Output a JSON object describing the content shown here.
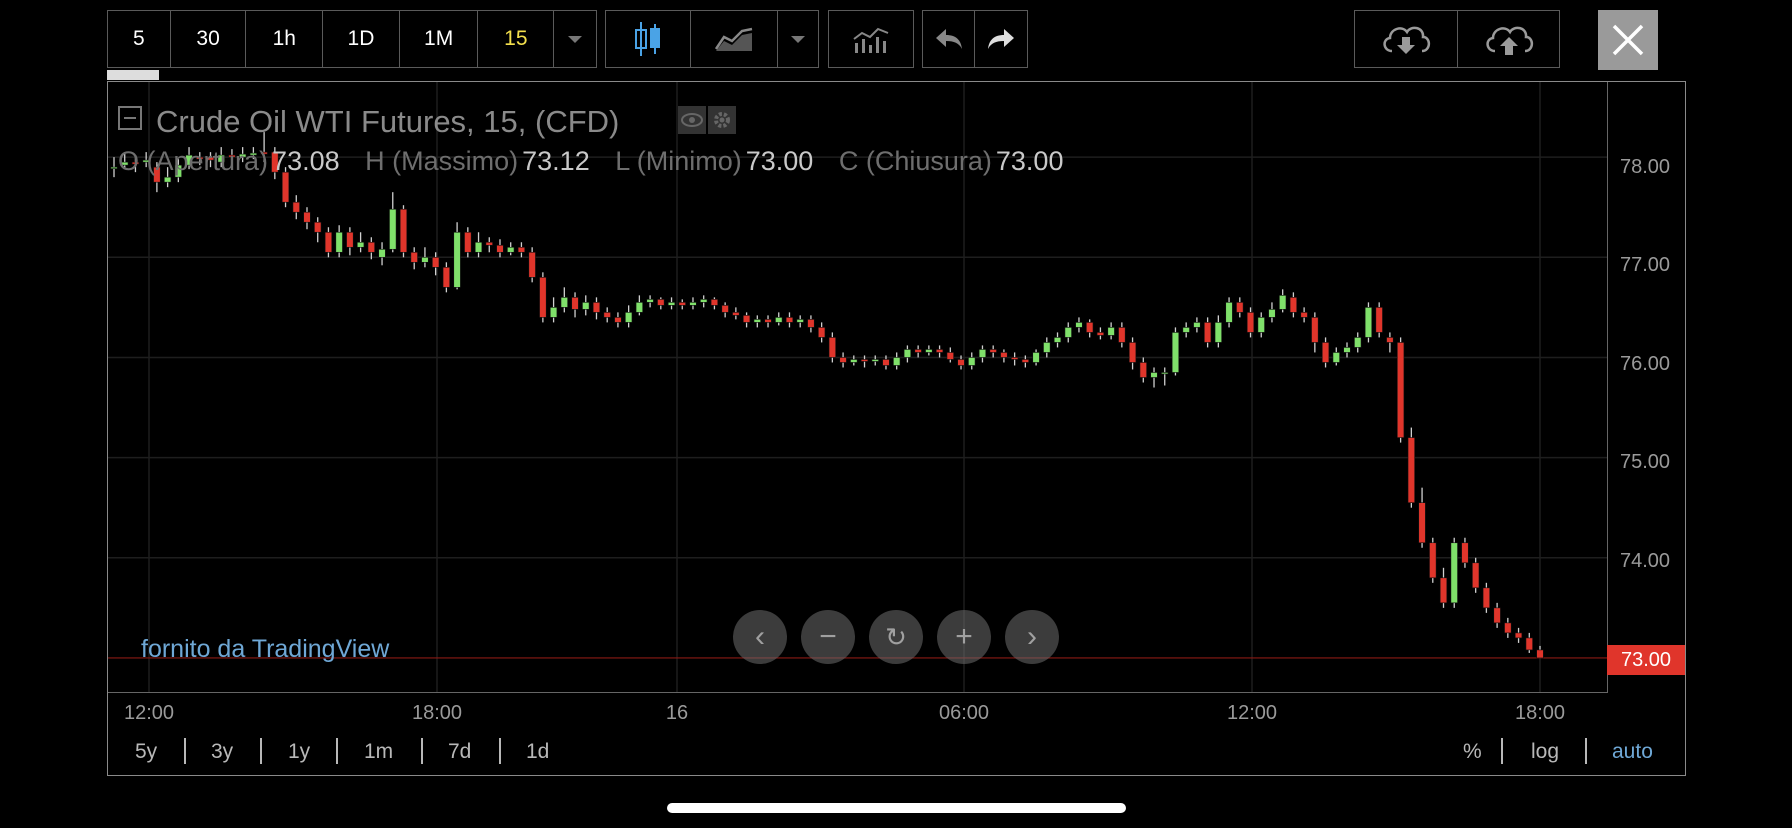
{
  "toolbar": {
    "intervals": [
      "5",
      "30",
      "1h",
      "1D",
      "1M",
      "15"
    ],
    "active_interval": "15",
    "chart_style_icon": "candlestick-icon",
    "line_style_icon": "line-chart-icon",
    "indicators_icon": "indicators-icon",
    "undo_icon": "undo-icon",
    "redo_icon": "redo-icon",
    "download_icon": "cloud-download-icon",
    "upload_icon": "cloud-upload-icon",
    "close_icon": "close-icon"
  },
  "legend": {
    "title": "Crude Oil WTI Futures, 15, (CFD)",
    "o_label": "O (Apertura)",
    "o_value": "73.08",
    "h_label": "H (Massimo)",
    "h_value": "73.12",
    "l_label": "L (Minimo)",
    "l_value": "73.00",
    "c_label": "C (Chiusura)",
    "c_value": "73.00"
  },
  "price_axis": [
    "78.00",
    "77.00",
    "76.00",
    "75.00",
    "74.00"
  ],
  "last_price": "73.00",
  "time_axis": [
    "12:00",
    "18:00",
    "16",
    "06:00",
    "12:00",
    "18:00"
  ],
  "attribution": "fornito da TradingView",
  "ranges": [
    "5y",
    "3y",
    "1y",
    "1m",
    "7d",
    "1d"
  ],
  "scale_options": {
    "percent": "%",
    "log": "log",
    "auto": "auto"
  },
  "colors": {
    "up": "#7fe06a",
    "down": "#e0352b",
    "last_price_bg": "#e0352b",
    "auto_active": "#6fa8d6",
    "attribution": "#6fa8d6"
  },
  "chart_data": {
    "type": "candlestick",
    "title": "Crude Oil WTI Futures, 15, (CFD)",
    "ylim": [
      72.65,
      78.75
    ],
    "candles": [
      [
        77.9,
        77.9,
        78.0,
        77.8
      ],
      [
        77.92,
        77.95,
        78.05,
        77.88
      ],
      [
        77.95,
        77.93,
        78.02,
        77.85
      ],
      [
        77.95,
        77.97,
        78.05,
        77.9
      ],
      [
        77.9,
        77.75,
        77.95,
        77.65
      ],
      [
        77.75,
        77.8,
        77.9,
        77.7
      ],
      [
        77.8,
        77.92,
        77.98,
        77.75
      ],
      [
        77.92,
        78.02,
        78.1,
        77.88
      ],
      [
        78.0,
        77.98,
        78.05,
        77.92
      ],
      [
        78.0,
        77.97,
        78.05,
        77.9
      ],
      [
        77.95,
        78.02,
        78.1,
        77.9
      ],
      [
        78.02,
        78.0,
        78.08,
        77.95
      ],
      [
        78.0,
        78.03,
        78.1,
        77.95
      ],
      [
        78.02,
        78.04,
        78.1,
        77.98
      ],
      [
        78.05,
        78.03,
        78.25,
        77.95
      ],
      [
        78.05,
        77.85,
        78.1,
        77.78
      ],
      [
        77.85,
        77.55,
        77.9,
        77.5
      ],
      [
        77.55,
        77.45,
        77.62,
        77.38
      ],
      [
        77.45,
        77.35,
        77.5,
        77.28
      ],
      [
        77.35,
        77.25,
        77.4,
        77.15
      ],
      [
        77.25,
        77.05,
        77.3,
        77.0
      ],
      [
        77.05,
        77.25,
        77.32,
        77.0
      ],
      [
        77.25,
        77.1,
        77.3,
        77.02
      ],
      [
        77.1,
        77.15,
        77.25,
        77.05
      ],
      [
        77.15,
        77.05,
        77.2,
        76.98
      ],
      [
        77.0,
        77.08,
        77.15,
        76.92
      ],
      [
        77.08,
        77.48,
        77.65,
        77.05
      ],
      [
        77.48,
        77.05,
        77.52,
        77.0
      ],
      [
        77.05,
        76.95,
        77.1,
        76.88
      ],
      [
        76.95,
        77.0,
        77.1,
        76.9
      ],
      [
        77.0,
        76.9,
        77.05,
        76.82
      ],
      [
        76.9,
        76.7,
        76.95,
        76.65
      ],
      [
        76.7,
        77.25,
        77.35,
        76.68
      ],
      [
        77.25,
        77.05,
        77.3,
        77.0
      ],
      [
        77.05,
        77.15,
        77.25,
        77.0
      ],
      [
        77.15,
        77.12,
        77.2,
        77.05
      ],
      [
        77.12,
        77.05,
        77.18,
        77.0
      ],
      [
        77.05,
        77.1,
        77.15,
        77.02
      ],
      [
        77.1,
        77.05,
        77.15,
        77.0
      ],
      [
        77.05,
        76.8,
        77.1,
        76.75
      ],
      [
        76.8,
        76.4,
        76.85,
        76.35
      ],
      [
        76.4,
        76.5,
        76.6,
        76.35
      ],
      [
        76.5,
        76.6,
        76.7,
        76.45
      ],
      [
        76.6,
        76.48,
        76.65,
        76.4
      ],
      [
        76.48,
        76.55,
        76.62,
        76.42
      ],
      [
        76.55,
        76.45,
        76.6,
        76.38
      ],
      [
        76.45,
        76.4,
        76.5,
        76.35
      ],
      [
        76.4,
        76.35,
        76.45,
        76.3
      ],
      [
        76.35,
        76.45,
        76.52,
        76.3
      ],
      [
        76.45,
        76.55,
        76.62,
        76.42
      ],
      [
        76.55,
        76.58,
        76.62,
        76.5
      ],
      [
        76.58,
        76.52,
        76.6,
        76.48
      ],
      [
        76.52,
        76.55,
        76.6,
        76.48
      ],
      [
        76.55,
        76.52,
        76.58,
        76.48
      ],
      [
        76.52,
        76.55,
        76.6,
        76.48
      ],
      [
        76.55,
        76.58,
        76.62,
        76.5
      ],
      [
        76.58,
        76.52,
        76.6,
        76.48
      ],
      [
        76.52,
        76.45,
        76.55,
        76.4
      ],
      [
        76.45,
        76.42,
        76.5,
        76.38
      ],
      [
        76.42,
        76.35,
        76.45,
        76.3
      ],
      [
        76.35,
        76.38,
        76.42,
        76.3
      ],
      [
        76.38,
        76.35,
        76.42,
        76.3
      ],
      [
        76.35,
        76.4,
        76.45,
        76.32
      ],
      [
        76.4,
        76.35,
        76.45,
        76.3
      ],
      [
        76.35,
        76.38,
        76.42,
        76.3
      ],
      [
        76.38,
        76.3,
        76.42,
        76.25
      ],
      [
        76.3,
        76.2,
        76.35,
        76.15
      ],
      [
        76.2,
        76.0,
        76.25,
        75.95
      ],
      [
        76.0,
        75.95,
        76.05,
        75.9
      ],
      [
        75.95,
        75.98,
        76.02,
        75.92
      ],
      [
        75.98,
        75.96,
        76.02,
        75.9
      ],
      [
        75.96,
        75.98,
        76.02,
        75.92
      ],
      [
        75.98,
        75.92,
        76.02,
        75.88
      ],
      [
        75.92,
        76.0,
        76.05,
        75.88
      ],
      [
        76.0,
        76.08,
        76.12,
        75.95
      ],
      [
        76.08,
        76.05,
        76.12,
        76.0
      ],
      [
        76.05,
        76.08,
        76.12,
        76.02
      ],
      [
        76.08,
        76.05,
        76.12,
        76.0
      ],
      [
        76.05,
        75.98,
        76.1,
        75.95
      ],
      [
        75.98,
        75.92,
        76.02,
        75.88
      ],
      [
        75.92,
        76.0,
        76.05,
        75.88
      ],
      [
        76.0,
        76.08,
        76.12,
        75.95
      ],
      [
        76.08,
        76.05,
        76.12,
        76.0
      ],
      [
        76.05,
        76.0,
        76.08,
        75.95
      ],
      [
        76.0,
        75.98,
        76.05,
        75.92
      ],
      [
        75.98,
        75.95,
        76.02,
        75.9
      ],
      [
        75.95,
        76.05,
        76.08,
        75.92
      ],
      [
        76.05,
        76.15,
        76.2,
        76.0
      ],
      [
        76.15,
        76.2,
        76.25,
        76.1
      ],
      [
        76.2,
        76.3,
        76.35,
        76.15
      ],
      [
        76.3,
        76.35,
        76.4,
        76.25
      ],
      [
        76.35,
        76.25,
        76.38,
        76.2
      ],
      [
        76.25,
        76.22,
        76.3,
        76.18
      ],
      [
        76.22,
        76.3,
        76.35,
        76.18
      ],
      [
        76.3,
        76.15,
        76.35,
        76.1
      ],
      [
        76.15,
        75.95,
        76.2,
        75.88
      ],
      [
        75.95,
        75.8,
        76.0,
        75.75
      ],
      [
        75.8,
        75.85,
        75.9,
        75.7
      ],
      [
        75.85,
        75.85,
        75.9,
        75.72
      ],
      [
        75.85,
        76.25,
        76.3,
        75.82
      ],
      [
        76.25,
        76.3,
        76.35,
        76.2
      ],
      [
        76.3,
        76.35,
        76.4,
        76.25
      ],
      [
        76.35,
        76.15,
        76.4,
        76.1
      ],
      [
        76.15,
        76.35,
        76.42,
        76.1
      ],
      [
        76.35,
        76.55,
        76.6,
        76.3
      ],
      [
        76.55,
        76.45,
        76.6,
        76.4
      ],
      [
        76.45,
        76.25,
        76.5,
        76.2
      ],
      [
        76.25,
        76.4,
        76.45,
        76.2
      ],
      [
        76.4,
        76.48,
        76.55,
        76.35
      ],
      [
        76.48,
        76.62,
        76.68,
        76.45
      ],
      [
        76.6,
        76.45,
        76.65,
        76.4
      ],
      [
        76.45,
        76.4,
        76.5,
        76.35
      ],
      [
        76.4,
        76.15,
        76.45,
        76.05
      ],
      [
        76.15,
        75.95,
        76.2,
        75.9
      ],
      [
        75.95,
        76.05,
        76.1,
        75.92
      ],
      [
        76.05,
        76.1,
        76.15,
        76.0
      ],
      [
        76.1,
        76.2,
        76.25,
        76.05
      ],
      [
        76.2,
        76.5,
        76.55,
        76.15
      ],
      [
        76.5,
        76.25,
        76.55,
        76.2
      ],
      [
        76.2,
        76.15,
        76.25,
        76.05
      ],
      [
        76.15,
        75.2,
        76.2,
        75.15
      ],
      [
        75.2,
        74.55,
        75.3,
        74.5
      ],
      [
        74.55,
        74.15,
        74.7,
        74.1
      ],
      [
        74.15,
        73.8,
        74.2,
        73.75
      ],
      [
        73.8,
        73.55,
        73.9,
        73.5
      ],
      [
        73.55,
        74.15,
        74.2,
        73.5
      ],
      [
        74.15,
        73.95,
        74.2,
        73.9
      ],
      [
        73.95,
        73.7,
        74.0,
        73.65
      ],
      [
        73.7,
        73.5,
        73.75,
        73.45
      ],
      [
        73.5,
        73.35,
        73.55,
        73.3
      ],
      [
        73.35,
        73.25,
        73.4,
        73.2
      ],
      [
        73.25,
        73.2,
        73.3,
        73.15
      ],
      [
        73.2,
        73.08,
        73.25,
        73.05
      ],
      [
        73.08,
        73.0,
        73.12,
        73.0
      ]
    ]
  }
}
